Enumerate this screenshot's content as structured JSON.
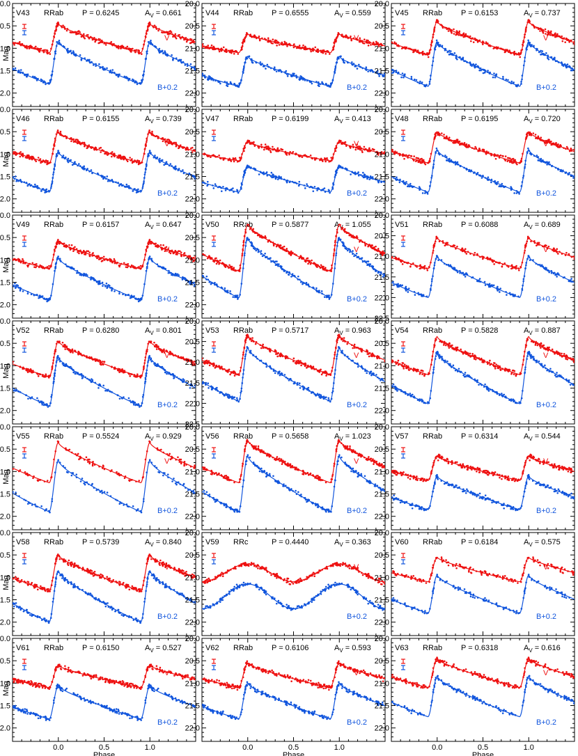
{
  "chart_data": {
    "type": "scatter",
    "layout": {
      "columns": 3,
      "rows": 7
    },
    "x_axis": {
      "label": "Phase",
      "range": [
        -0.5,
        1.5
      ],
      "ticks": [
        "0.0",
        "0.5",
        "1.0"
      ]
    },
    "y_axis": {
      "label": "Mag",
      "inverted": true,
      "ticks": [
        "20.0",
        "20.5",
        "21.0",
        "21.5",
        "22.0",
        "22.5"
      ]
    },
    "band_labels": {
      "v": "V",
      "b": "B+0.2"
    },
    "colors": {
      "v": "#ee1111",
      "b": "#1155dd"
    },
    "panels": [
      {
        "name": "V43",
        "type": "RRab",
        "P": "P = 0.6245",
        "A": "0.661",
        "v_max": 20.45,
        "v_min": 21.1,
        "b_max": 20.85,
        "b_min": 21.8,
        "ylim": [
          20.0,
          22.3
        ],
        "nv": 150,
        "nb": 110
      },
      {
        "name": "V44",
        "type": "RRab",
        "P": "P = 0.6555",
        "A": "0.559",
        "v_max": 20.68,
        "v_min": 21.1,
        "b_max": 21.18,
        "b_min": 21.85,
        "ylim": [
          20.0,
          22.3
        ],
        "nv": 150,
        "nb": 110
      },
      {
        "name": "V45",
        "type": "RRab",
        "P": "P = 0.6153",
        "A": "0.737",
        "v_max": 20.4,
        "v_min": 21.15,
        "b_max": 20.85,
        "b_min": 21.85,
        "ylim": [
          20.0,
          22.3
        ],
        "nv": 150,
        "nb": 110
      },
      {
        "name": "V46",
        "type": "RRab",
        "P": "P = 0.6155",
        "A": "0.739",
        "v_max": 20.5,
        "v_min": 21.2,
        "b_max": 20.95,
        "b_min": 21.85,
        "ylim": [
          20.0,
          22.3
        ],
        "nv": 150,
        "nb": 110
      },
      {
        "name": "V47",
        "type": "RRab",
        "P": "P = 0.6199",
        "A": "0.413",
        "v_max": 20.72,
        "v_min": 21.15,
        "b_max": 21.25,
        "b_min": 21.85,
        "ylim": [
          20.0,
          22.3
        ],
        "nv": 130,
        "nb": 110
      },
      {
        "name": "V48",
        "type": "RRab",
        "P": "P = 0.6195",
        "A": "0.720",
        "v_max": 20.5,
        "v_min": 21.2,
        "b_max": 20.9,
        "b_min": 21.85,
        "ylim": [
          20.0,
          22.3
        ],
        "nv": 150,
        "nb": 110
      },
      {
        "name": "V49",
        "type": "RRab",
        "P": "P = 0.6157",
        "A": "0.647",
        "v_max": 20.58,
        "v_min": 21.2,
        "b_max": 20.95,
        "b_min": 21.9,
        "ylim": [
          20.0,
          22.3
        ],
        "nv": 150,
        "nb": 110
      },
      {
        "name": "V50",
        "type": "RRab",
        "P": "P = 0.5877",
        "A": "1.055",
        "v_max": 20.2,
        "v_min": 21.25,
        "b_max": 20.5,
        "b_min": 21.85,
        "ylim": [
          20.0,
          22.3
        ],
        "nv": 150,
        "nb": 110
      },
      {
        "name": "V51",
        "type": "RRab",
        "P": "P = 0.6088",
        "A": "0.689",
        "v_max": 20.55,
        "v_min": 21.3,
        "b_max": 21.0,
        "b_min": 22.0,
        "ylim": [
          20.0,
          22.5
        ],
        "nv": 100,
        "nb": 90
      },
      {
        "name": "V52",
        "type": "RRab",
        "P": "P = 0.6280",
        "A": "0.801",
        "v_max": 20.45,
        "v_min": 21.25,
        "b_max": 20.8,
        "b_min": 21.9,
        "ylim": [
          20.0,
          22.3
        ],
        "nv": 150,
        "nb": 110
      },
      {
        "name": "V53",
        "type": "RRab",
        "P": "P = 0.5717",
        "A": "0.963",
        "v_max": 20.35,
        "v_min": 21.3,
        "b_max": 20.65,
        "b_min": 21.95,
        "ylim": [
          20.0,
          22.5
        ],
        "nv": 150,
        "nb": 110
      },
      {
        "name": "V54",
        "type": "RRab",
        "P": "P = 0.5828",
        "A": "0.887",
        "v_max": 20.35,
        "v_min": 21.2,
        "b_max": 20.7,
        "b_min": 21.85,
        "ylim": [
          20.0,
          22.3
        ],
        "nv": 150,
        "nb": 110
      },
      {
        "name": "V55",
        "type": "RRab",
        "P": "P = 0.5524",
        "A": "0.929",
        "v_max": 20.35,
        "v_min": 21.25,
        "b_max": 20.75,
        "b_min": 21.9,
        "ylim": [
          20.0,
          22.3
        ],
        "nv": 60,
        "nb": 50
      },
      {
        "name": "V56",
        "type": "RRab",
        "P": "P = 0.5658",
        "A": "1.023",
        "v_max": 20.3,
        "v_min": 21.25,
        "b_max": 20.65,
        "b_min": 21.9,
        "ylim": [
          20.0,
          22.3
        ],
        "nv": 150,
        "nb": 110
      },
      {
        "name": "V57",
        "type": "RRab",
        "P": "P = 0.6314",
        "A": "0.544",
        "v_max": 20.65,
        "v_min": 21.2,
        "b_max": 21.1,
        "b_min": 21.85,
        "ylim": [
          20.0,
          22.3
        ],
        "nv": 150,
        "nb": 110
      },
      {
        "name": "V58",
        "type": "RRab",
        "P": "P = 0.5739",
        "A": "0.840",
        "v_max": 20.5,
        "v_min": 21.3,
        "b_max": 20.85,
        "b_min": 22.0,
        "ylim": [
          20.0,
          22.3
        ],
        "nv": 150,
        "nb": 110
      },
      {
        "name": "V59",
        "type": "RRc",
        "P": "P = 0.4440",
        "A": "0.363",
        "v_max": 20.7,
        "v_min": 21.1,
        "b_max": 21.15,
        "b_min": 21.7,
        "ylim": [
          20.0,
          22.3
        ],
        "nv": 130,
        "nb": 110
      },
      {
        "name": "V60",
        "type": "RRab",
        "P": "P = 0.6184",
        "A": "0.575",
        "v_max": 20.55,
        "v_min": 21.1,
        "b_max": 20.95,
        "b_min": 21.8,
        "ylim": [
          20.0,
          22.3
        ],
        "nv": 90,
        "nb": 70
      },
      {
        "name": "V61",
        "type": "RRab",
        "P": "P = 0.6150",
        "A": "0.527",
        "v_max": 20.6,
        "v_min": 21.1,
        "b_max": 21.05,
        "b_min": 21.8,
        "ylim": [
          20.0,
          22.3
        ],
        "nv": 150,
        "nb": 110
      },
      {
        "name": "V62",
        "type": "RRab",
        "P": "P = 0.6106",
        "A": "0.593",
        "v_max": 20.55,
        "v_min": 21.1,
        "b_max": 21.0,
        "b_min": 21.8,
        "ylim": [
          20.0,
          22.3
        ],
        "nv": 150,
        "nb": 110
      },
      {
        "name": "V63",
        "type": "RRab",
        "P": "P = 0.6318",
        "A": "0.616",
        "v_max": 20.45,
        "v_min": 21.1,
        "b_max": 20.85,
        "b_min": 21.75,
        "ylim": [
          20.0,
          22.3
        ],
        "nv": 110,
        "nb": 90
      }
    ]
  }
}
